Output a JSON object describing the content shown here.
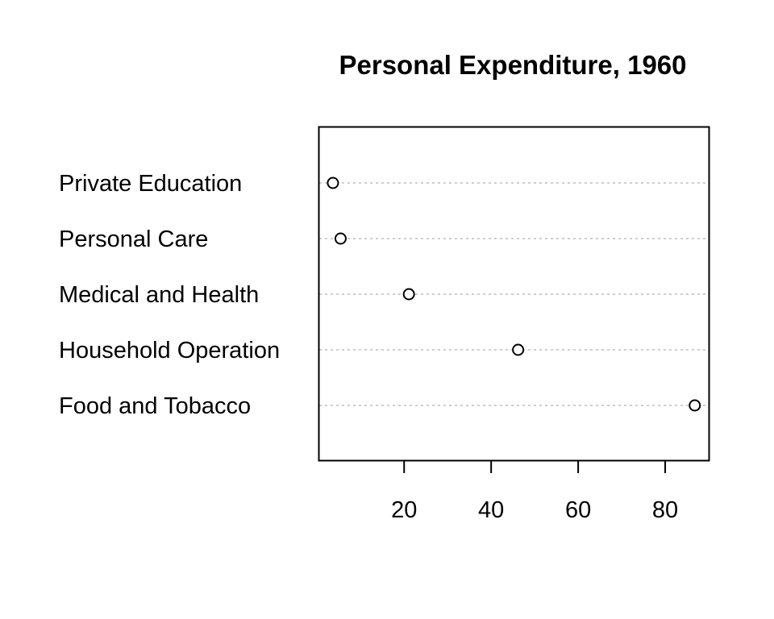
{
  "chart_data": {
    "type": "scatter",
    "variant": "dotchart",
    "title": "Personal Expenditure, 1960",
    "xlabel": "",
    "ylabel": "",
    "categories": [
      "Private Education",
      "Personal Care",
      "Medical and Health",
      "Household Operation",
      "Food and Tobacco"
    ],
    "values": [
      3.64,
      5.4,
      21.1,
      46.2,
      86.8
    ],
    "xlim": [
      0.5,
      90
    ],
    "xticks": [
      20,
      40,
      60,
      80
    ],
    "grid": "dotted horizontal guide lines per category",
    "legend": "none",
    "colors": {
      "marker_stroke": "#000000",
      "guide_line": "#bebebe",
      "frame": "#000000"
    }
  }
}
